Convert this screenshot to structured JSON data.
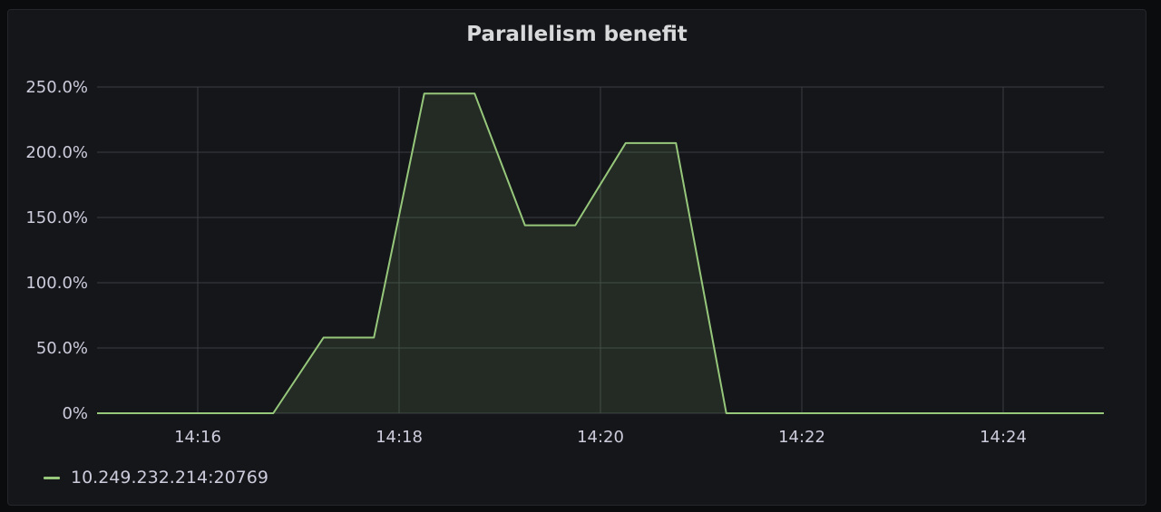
{
  "panel": {
    "title": "Parallelism benefit"
  },
  "colors": {
    "series": "#96c77b",
    "fill": "rgba(150,199,123,0.12)",
    "grid": "#3a3c42"
  },
  "chart_data": {
    "type": "area",
    "title": "Parallelism benefit",
    "xlabel": "",
    "ylabel": "",
    "x_ticks": [
      "14:16",
      "14:18",
      "14:20",
      "14:22",
      "14:24"
    ],
    "y_ticks": [
      "0%",
      "50.0%",
      "100.0%",
      "150.0%",
      "200.0%",
      "250.0%"
    ],
    "xlim": [
      "14:15",
      "14:25"
    ],
    "ylim": [
      0,
      250
    ],
    "grid": true,
    "legend_position": "bottom-left",
    "series": [
      {
        "name": "10.249.232.214:20769",
        "points": [
          {
            "x": "14:15:00",
            "y": 0
          },
          {
            "x": "14:16:45",
            "y": 0
          },
          {
            "x": "14:17:15",
            "y": 58
          },
          {
            "x": "14:17:45",
            "y": 58
          },
          {
            "x": "14:18:15",
            "y": 245
          },
          {
            "x": "14:18:45",
            "y": 245
          },
          {
            "x": "14:19:15",
            "y": 144
          },
          {
            "x": "14:19:45",
            "y": 144
          },
          {
            "x": "14:20:15",
            "y": 207
          },
          {
            "x": "14:20:45",
            "y": 207
          },
          {
            "x": "14:21:15",
            "y": 0
          },
          {
            "x": "14:25:00",
            "y": 0
          }
        ]
      }
    ]
  }
}
